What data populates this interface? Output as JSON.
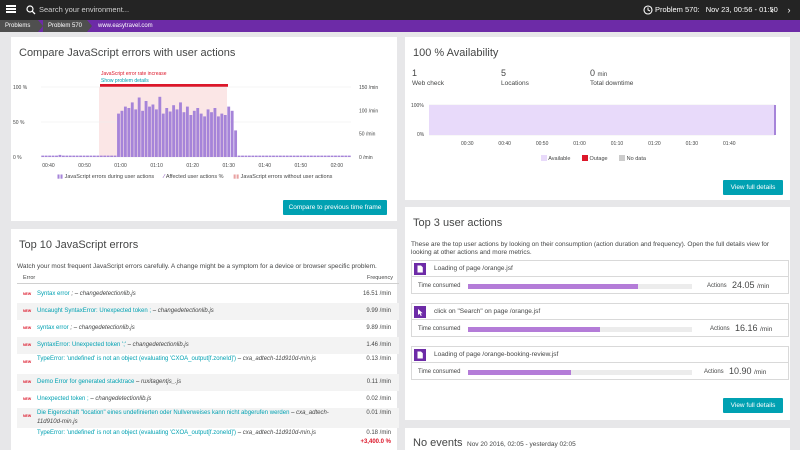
{
  "topbar": {
    "search_placeholder": "Search your environment...",
    "problem_label": "Problem 570:",
    "time_range": "Nov 23, 00:56 - 01:50"
  },
  "breadcrumb": [
    "Problems",
    "Problem 570",
    "www.easytravel.com"
  ],
  "colors": {
    "accent_purple": "#6d2ba7",
    "teal": "#00a1b2",
    "error_red": "#dc172a",
    "chart_bar": "#a684d9",
    "availability_fill": "#e8dafa"
  },
  "compare_panel": {
    "title": "Compare JavaScript errors with user actions",
    "annotation": "JavaScript error rate increase",
    "annotation_link": "Show problem details",
    "left_axis_labels": [
      "100 %",
      "50 %",
      "0 %"
    ],
    "right_axis_labels": [
      "150 /min",
      "100 /min",
      "50 /min",
      "0 /min"
    ],
    "legend": [
      "JavaScript errors during user actions",
      "Affected user actions %",
      "JavaScript errors without user actions"
    ],
    "compare_button": "Compare to previous time frame"
  },
  "chart_data": {
    "type": "bar",
    "x_tick_labels": [
      "00:40",
      "00:50",
      "01:00",
      "01:10",
      "01:20",
      "01:30",
      "01:40",
      "01:50",
      "02:00"
    ],
    "left_ylim": [
      0,
      100
    ],
    "right_ylim": [
      0,
      150
    ],
    "problem_window": [
      "00:59",
      "01:30"
    ],
    "series": [
      {
        "name": "Affected user actions %",
        "values": [
          2,
          2,
          2,
          2,
          2,
          3,
          2,
          2,
          2,
          2,
          2,
          2,
          2,
          2,
          2,
          2,
          2,
          2,
          2,
          2,
          2,
          2,
          62,
          66,
          72,
          70,
          78,
          68,
          85,
          66,
          80,
          72,
          75,
          68,
          86,
          62,
          70,
          65,
          74,
          68,
          78,
          64,
          72,
          60,
          66,
          70,
          62,
          58,
          68,
          64,
          70,
          58,
          62,
          60,
          72,
          66,
          38,
          2,
          2,
          2,
          2,
          2,
          2,
          2,
          2,
          2,
          2,
          2,
          2,
          2,
          2,
          2,
          2,
          2,
          2,
          2,
          2,
          2,
          2,
          2,
          2,
          2,
          2,
          2,
          2,
          2,
          2,
          2,
          2,
          2
        ]
      }
    ]
  },
  "errors_panel": {
    "title": "Top 10 JavaScript errors",
    "description": "Watch your most frequent JavaScript errors carefully. A change might be a symptom for a device or browser specific problem.",
    "col_error": "Error",
    "col_frequency": "Frequency",
    "rows": [
      {
        "badge": "NEW",
        "error": "Syntax error",
        "source": " ; – changedetectionlib.js",
        "frequency": "16.51 /min"
      },
      {
        "badge": "NEW",
        "error": "Uncaught SyntaxError: Unexpected token ;",
        "source": " – changedetectionlib.js",
        "frequency": "9.99 /min"
      },
      {
        "badge": "NEW",
        "error": "syntax error",
        "source": " ; – changedetectionlib.js",
        "frequency": "9.89 /min"
      },
      {
        "badge": "NEW",
        "error": "SyntaxError: Unexpected token ';'",
        "source": " – changedetectionlib.js",
        "frequency": "1.46 /min"
      },
      {
        "badge": "NEW",
        "error": "TypeError: 'undefined' is not an object (evaluating 'CXOA_output[f.zoneId]')",
        "source": " – cxa_adtech-11d910d-min.js",
        "frequency": "0.13 /min"
      },
      {
        "badge": "NEW",
        "error": "Demo Error for generated stacktrace",
        "source": " – ruxitagentjs_.js",
        "frequency": "0.11 /min"
      },
      {
        "badge": "NEW",
        "error": "Unexpected token ;",
        "source": " – changedetectionlib.js",
        "frequency": "0.02 /min"
      },
      {
        "badge": "NEW",
        "error": "Die Eigenschaft \"location\" eines undefinierten oder Nullverweises kann nicht abgerufen werden",
        "source": " – cxa_adtech-11d910d-min.js",
        "frequency": "0.01 /min"
      },
      {
        "badge": "",
        "error": "TypeError: 'undefined' is not an object (evaluating 'CXOA_output[f.zoneId]')",
        "source": " – cxa_adtech-11d910d-min.js",
        "frequency": "0.18 /min",
        "delta": "+3,400.0 %"
      }
    ]
  },
  "availability_panel": {
    "title": "100 % Availability",
    "stats": [
      {
        "value": "1",
        "unit": "",
        "label": "Web check"
      },
      {
        "value": "5",
        "unit": "",
        "label": "Locations"
      },
      {
        "value": "0",
        "unit": "min",
        "label": "Total downtime"
      }
    ],
    "y_labels": [
      "100%",
      "0%"
    ],
    "x_labels": [
      "00:30",
      "00:40",
      "00:50",
      "01:00",
      "01:10",
      "01:20",
      "01:30",
      "01:40"
    ],
    "legend": [
      {
        "label": "Available",
        "color": "#e8dafa"
      },
      {
        "label": "Outage",
        "color": "#dc172a"
      },
      {
        "label": "No data",
        "color": "#cccccc"
      }
    ],
    "availability_percent": 100,
    "button": "View full details"
  },
  "actions_panel": {
    "title": "Top 3 user actions",
    "description": "These are the top user actions by looking on their consumption (action duration and frequency). Open the full details view for looking at other actions and more metrics.",
    "time_consumed_label": "Time consumed",
    "actions_label": "Actions",
    "items": [
      {
        "name": "Loading of page /orange.jsf",
        "icon": "page-load-icon",
        "actions_value": "24.05",
        "actions_unit": "/min",
        "consumption": 0.76
      },
      {
        "name": "click on \"Search\" on page /orange.jsf",
        "icon": "click-icon",
        "actions_value": "16.16",
        "actions_unit": "/min",
        "consumption": 0.59
      },
      {
        "name": "Loading of page /orange-booking-review.jsf",
        "icon": "page-load-icon",
        "actions_value": "10.90",
        "actions_unit": "/min",
        "consumption": 0.46
      }
    ],
    "button": "View full details"
  },
  "events_panel": {
    "title": "No events",
    "range": "Nov 20 2016, 02:05 - yesterday 02:05"
  }
}
